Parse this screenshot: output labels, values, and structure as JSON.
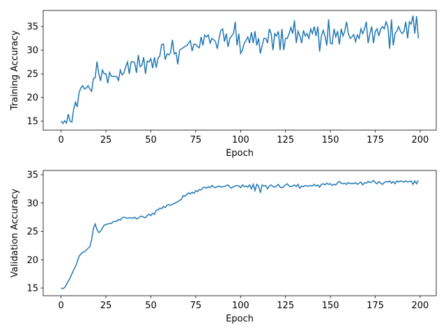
{
  "chart_data": [
    {
      "type": "line",
      "xlabel": "Epoch",
      "ylabel": "Training Accuracy",
      "color": "#1f77b4",
      "x": [
        0,
        1,
        2,
        3,
        4,
        5,
        6,
        7,
        8,
        9,
        10,
        11,
        12,
        13,
        14,
        15,
        16,
        17,
        18,
        19,
        20,
        21,
        22,
        23,
        24,
        25,
        26,
        27,
        28,
        29,
        30,
        31,
        32,
        33,
        34,
        35,
        36,
        37,
        38,
        39,
        40,
        41,
        42,
        43,
        44,
        45,
        46,
        47,
        48,
        49,
        50,
        51,
        52,
        53,
        54,
        55,
        56,
        57,
        58,
        59,
        60,
        61,
        62,
        63,
        64,
        65,
        66,
        67,
        68,
        69,
        70,
        71,
        72,
        73,
        74,
        75,
        76,
        77,
        78,
        79,
        80,
        81,
        82,
        83,
        84,
        85,
        86,
        87,
        88,
        89,
        90,
        91,
        92,
        93,
        94,
        95,
        96,
        97,
        98,
        99,
        100,
        101,
        102,
        103,
        104,
        105,
        106,
        107,
        108,
        109,
        110,
        111,
        112,
        113,
        114,
        115,
        116,
        117,
        118,
        119,
        120,
        121,
        122,
        123,
        124,
        125,
        126,
        127,
        128,
        129,
        130,
        131,
        132,
        133,
        134,
        135,
        136,
        137,
        138,
        139,
        140,
        141,
        142,
        143,
        144,
        145,
        146,
        147,
        148,
        149,
        150,
        151,
        152,
        153,
        154,
        155,
        156,
        157,
        158,
        159,
        160,
        161,
        162,
        163,
        164,
        165,
        166,
        167,
        168,
        169,
        170,
        171,
        172,
        173,
        174,
        175,
        176,
        177,
        178,
        179,
        180,
        181,
        182,
        183,
        184,
        185,
        186,
        187,
        188,
        189,
        190,
        191,
        192,
        193,
        194,
        195,
        196,
        197,
        198,
        199
      ],
      "values": [
        15.0,
        14.5,
        15.1,
        14.6,
        16.5,
        15.0,
        14.8,
        17.5,
        19.0,
        18.0,
        21.0,
        22.0,
        22.5,
        21.8,
        22.0,
        22.5,
        21.8,
        21.3,
        24.0,
        24.2,
        27.6,
        25.0,
        23.5,
        25.8,
        25.0,
        25.0,
        23.0,
        25.3,
        24.5,
        24.5,
        24.4,
        24.4,
        23.6,
        25.8,
        24.8,
        25.2,
        26.5,
        27.5,
        25.0,
        27.5,
        27.6,
        27.3,
        25.2,
        29.0,
        26.5,
        26.8,
        28.5,
        25.0,
        27.7,
        27.5,
        28.2,
        26.2,
        28.5,
        26.3,
        28.3,
        28.8,
        31.2,
        31.3,
        28.0,
        29.2,
        29.0,
        29.5,
        32.2,
        29.2,
        29.5,
        27.0,
        30.0,
        30.3,
        30.5,
        30.8,
        31.0,
        31.5,
        32.0,
        29.8,
        31.3,
        31.2,
        30.8,
        30.5,
        32.8,
        31.0,
        33.2,
        32.8,
        33.2,
        31.5,
        32.5,
        32.2,
        31.8,
        30.3,
        32.5,
        34.2,
        34.5,
        31.8,
        33.5,
        30.7,
        32.5,
        33.0,
        33.5,
        36.0,
        31.0,
        33.5,
        29.3,
        30.0,
        31.5,
        32.0,
        32.8,
        31.5,
        33.8,
        31.5,
        34.0,
        31.0,
        32.5,
        29.3,
        31.0,
        32.5,
        32.5,
        31.5,
        34.5,
        33.5,
        30.0,
        33.5,
        33.0,
        34.0,
        30.0,
        34.5,
        30.0,
        32.5,
        32.5,
        33.5,
        34.8,
        33.5,
        36.3,
        31.5,
        34.0,
        33.0,
        31.5,
        34.2,
        33.0,
        33.5,
        32.5,
        34.5,
        33.5,
        35.0,
        33.0,
        35.0,
        29.7,
        33.0,
        34.2,
        33.0,
        31.0,
        36.5,
        31.5,
        31.3,
        34.5,
        32.8,
        34.0,
        31.2,
        34.5,
        33.0,
        34.0,
        36.0,
        33.5,
        32.5,
        32.8,
        33.3,
        31.8,
        33.2,
        32.5,
        34.5,
        33.5,
        34.5,
        36.0,
        31.5,
        33.5,
        35.0,
        31.5,
        34.0,
        34.5,
        33.0,
        34.5,
        35.0,
        34.5,
        36.0,
        35.0,
        30.3,
        36.5,
        31.0,
        33.5,
        34.0,
        35.0,
        34.0,
        33.5,
        34.0,
        36.0,
        32.5,
        36.0,
        35.5,
        37.3,
        33.5,
        37.2,
        32.5
      ],
      "xlim": [
        -9.95,
        208.95
      ],
      "xticks": [
        0,
        25,
        50,
        75,
        100,
        125,
        150,
        175,
        200
      ],
      "ylim": [
        13.1,
        38.4
      ],
      "yticks": [
        15,
        20,
        25,
        30,
        35
      ]
    },
    {
      "type": "line",
      "xlabel": "Epoch",
      "ylabel": "Validation Accuracy",
      "color": "#1f77b4",
      "x": [
        0,
        1,
        2,
        3,
        4,
        5,
        6,
        7,
        8,
        9,
        10,
        11,
        12,
        13,
        14,
        15,
        16,
        17,
        18,
        19,
        20,
        21,
        22,
        23,
        24,
        25,
        26,
        27,
        28,
        29,
        30,
        31,
        32,
        33,
        34,
        35,
        36,
        37,
        38,
        39,
        40,
        41,
        42,
        43,
        44,
        45,
        46,
        47,
        48,
        49,
        50,
        51,
        52,
        53,
        54,
        55,
        56,
        57,
        58,
        59,
        60,
        61,
        62,
        63,
        64,
        65,
        66,
        67,
        68,
        69,
        70,
        71,
        72,
        73,
        74,
        75,
        76,
        77,
        78,
        79,
        80,
        81,
        82,
        83,
        84,
        85,
        86,
        87,
        88,
        89,
        90,
        91,
        92,
        93,
        94,
        95,
        96,
        97,
        98,
        99,
        100,
        101,
        102,
        103,
        104,
        105,
        106,
        107,
        108,
        109,
        110,
        111,
        112,
        113,
        114,
        115,
        116,
        117,
        118,
        119,
        120,
        121,
        122,
        123,
        124,
        125,
        126,
        127,
        128,
        129,
        130,
        131,
        132,
        133,
        134,
        135,
        136,
        137,
        138,
        139,
        140,
        141,
        142,
        143,
        144,
        145,
        146,
        147,
        148,
        149,
        150,
        151,
        152,
        153,
        154,
        155,
        156,
        157,
        158,
        159,
        160,
        161,
        162,
        163,
        164,
        165,
        166,
        167,
        168,
        169,
        170,
        171,
        172,
        173,
        174,
        175,
        176,
        177,
        178,
        179,
        180,
        181,
        182,
        183,
        184,
        185,
        186,
        187,
        188,
        189,
        190,
        191,
        192,
        193,
        194,
        195,
        196,
        197,
        198,
        199
      ],
      "values": [
        15.0,
        14.9,
        15.1,
        15.6,
        16.2,
        16.8,
        17.5,
        18.2,
        18.8,
        19.6,
        20.6,
        21.0,
        21.3,
        21.4,
        21.7,
        22.0,
        22.3,
        23.5,
        25.5,
        26.3,
        25.3,
        24.8,
        25.0,
        25.6,
        26.1,
        26.2,
        26.3,
        26.4,
        26.4,
        26.7,
        26.8,
        26.8,
        27.1,
        27.0,
        27.4,
        27.5,
        27.4,
        27.3,
        27.4,
        27.4,
        27.3,
        27.5,
        27.2,
        27.3,
        27.6,
        27.7,
        27.5,
        27.4,
        27.8,
        28.0,
        27.8,
        28.2,
        28.0,
        28.7,
        28.8,
        29.1,
        29.0,
        29.4,
        29.2,
        29.6,
        29.7,
        29.6,
        29.8,
        29.9,
        30.1,
        30.2,
        30.5,
        30.6,
        31.3,
        31.2,
        31.5,
        31.8,
        31.6,
        31.9,
        31.7,
        32.2,
        32.0,
        32.4,
        32.3,
        32.7,
        32.8,
        32.6,
        32.9,
        32.7,
        33.1,
        32.8,
        32.7,
        32.9,
        33.0,
        32.8,
        32.9,
        32.9,
        33.1,
        33.2,
        32.8,
        32.6,
        32.9,
        33.0,
        33.1,
        33.0,
        32.7,
        33.2,
        32.9,
        33.0,
        32.8,
        33.2,
        32.5,
        33.3,
        32.2,
        33.3,
        33.0,
        31.8,
        33.2,
        33.0,
        33.1,
        32.5,
        33.0,
        33.2,
        32.9,
        32.8,
        33.0,
        33.3,
        32.8,
        32.7,
        32.9,
        33.2,
        33.4,
        33.0,
        32.9,
        33.0,
        33.2,
        32.9,
        33.3,
        32.6,
        33.0,
        32.9,
        33.1,
        33.0,
        33.0,
        33.1,
        33.0,
        33.3,
        33.0,
        33.2,
        32.8,
        33.3,
        33.4,
        33.2,
        33.5,
        33.3,
        33.4,
        33.1,
        33.3,
        33.2,
        33.6,
        33.8,
        33.5,
        33.4,
        33.5,
        33.3,
        33.6,
        33.4,
        33.5,
        33.4,
        33.6,
        33.3,
        33.5,
        33.7,
        33.2,
        33.6,
        33.5,
        33.8,
        33.6,
        33.7,
        34.0,
        33.6,
        33.4,
        33.8,
        33.5,
        33.3,
        33.6,
        33.8,
        33.7,
        33.9,
        33.5,
        33.8,
        33.4,
        33.9,
        33.7,
        33.9,
        33.8,
        33.7,
        33.9,
        33.7,
        33.8,
        33.9,
        33.3,
        33.9,
        33.4,
        34.0
      ],
      "xlim": [
        -9.95,
        208.95
      ],
      "xticks": [
        0,
        25,
        50,
        75,
        100,
        125,
        150,
        175,
        200
      ],
      "ylim": [
        13.65,
        35.74
      ],
      "yticks": [
        15,
        20,
        25,
        30,
        35
      ]
    }
  ]
}
